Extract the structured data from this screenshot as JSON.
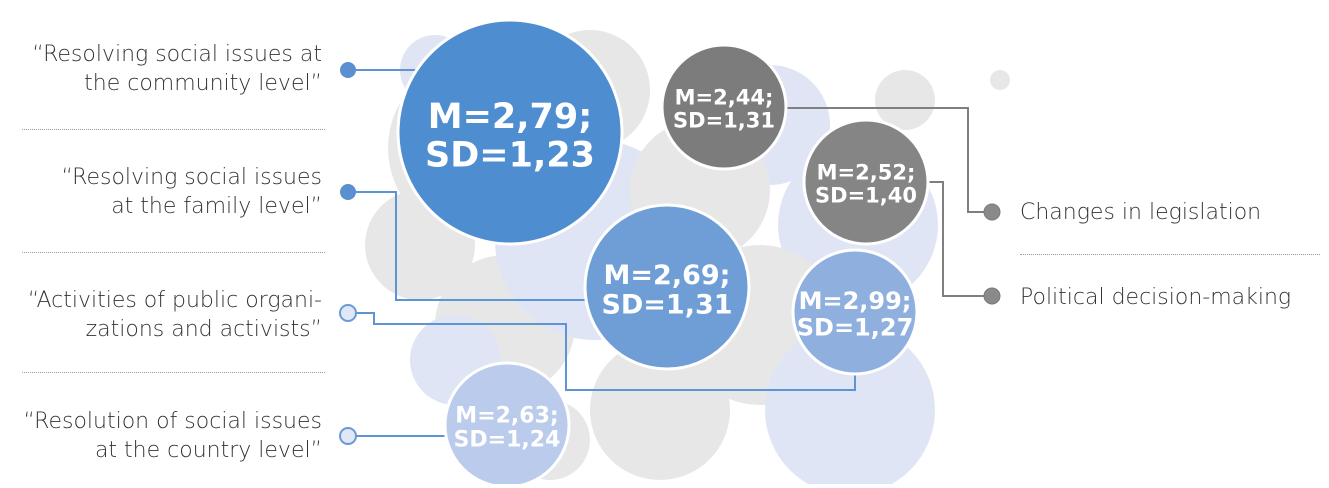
{
  "left_items": [
    {
      "line1": "“Resolving social issues at",
      "line2": "the community level”"
    },
    {
      "line1": "“Resolving social issues",
      "line2": "at the family level”"
    },
    {
      "line1": "“Activities of public organi-",
      "line2": "zations and activists”"
    },
    {
      "line1": "“Resolution of social issues",
      "line2": "at the country level”"
    }
  ],
  "right_items": [
    {
      "label": "Changes in legislation"
    },
    {
      "label": "Political decision-making"
    }
  ],
  "bubbles": [
    {
      "id": "community",
      "line1": "M=2,79;",
      "line2": "SD=1,23",
      "color": "#4e8ed0"
    },
    {
      "id": "family",
      "line1": "M=2,69;",
      "line2": "SD=1,31",
      "color": "#6f9ed6"
    },
    {
      "id": "public-orgs",
      "line1": "M=2,99;",
      "line2": "SD=1,27",
      "color": "#8fb0df"
    },
    {
      "id": "country",
      "line1": "M=2,63;",
      "line2": "SD=1,24",
      "color": "#bacbec",
      "text_color": "#5d8fd0"
    },
    {
      "id": "legislation",
      "line1": "M=2,44;",
      "line2": "SD=1,31",
      "color": "#7c7c7c"
    },
    {
      "id": "political",
      "line1": "M=2,52;",
      "line2": "SD=1,40",
      "color": "#858585"
    }
  ],
  "colors": {
    "blue_connector": "#5d94d3",
    "gray_connector": "#7f7f7f",
    "bg_gray": "#e7e7e7",
    "bg_blue": "#dfe5f4"
  }
}
